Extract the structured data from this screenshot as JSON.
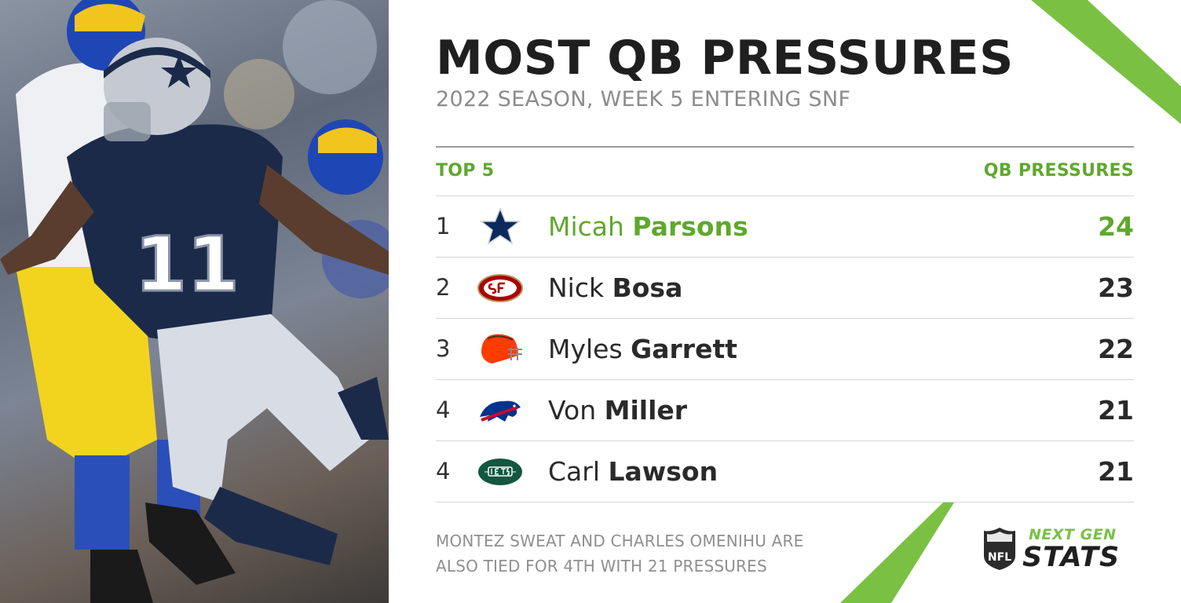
{
  "header": {
    "title": "MOST QB PRESSURES",
    "subtitle": "2022 SEASON, WEEK 5 ENTERING SNF"
  },
  "table": {
    "left_heading": "TOP 5",
    "right_heading": "QB PRESSURES",
    "rows": [
      {
        "rank": "1",
        "first": "Micah",
        "last": "Parsons",
        "value": "24",
        "team_icon": "cowboys-star-icon"
      },
      {
        "rank": "2",
        "first": "Nick",
        "last": "Bosa",
        "value": "23",
        "team_icon": "49ers-oval-icon"
      },
      {
        "rank": "3",
        "first": "Myles",
        "last": "Garrett",
        "value": "22",
        "team_icon": "browns-helmet-icon"
      },
      {
        "rank": "4",
        "first": "Von",
        "last": "Miller",
        "value": "21",
        "team_icon": "bills-buffalo-icon"
      },
      {
        "rank": "4",
        "first": "Carl",
        "last": "Lawson",
        "value": "21",
        "team_icon": "jets-oval-icon"
      }
    ]
  },
  "footnote": {
    "line1": "MONTEZ SWEAT AND CHARLES OMENIHU ARE",
    "line2": "ALSO TIED FOR 4TH WITH 21 PRESSURES"
  },
  "brand": {
    "line1": "NEXT GEN",
    "line2": "STATS",
    "shield_text": "NFL"
  },
  "photo": {
    "jersey_number": "11"
  },
  "colors": {
    "accent_green": "#5fa82e",
    "brand_green": "#7ac143",
    "title_dark": "#1f1f1f",
    "subtitle_gray": "#8c8c8c"
  }
}
